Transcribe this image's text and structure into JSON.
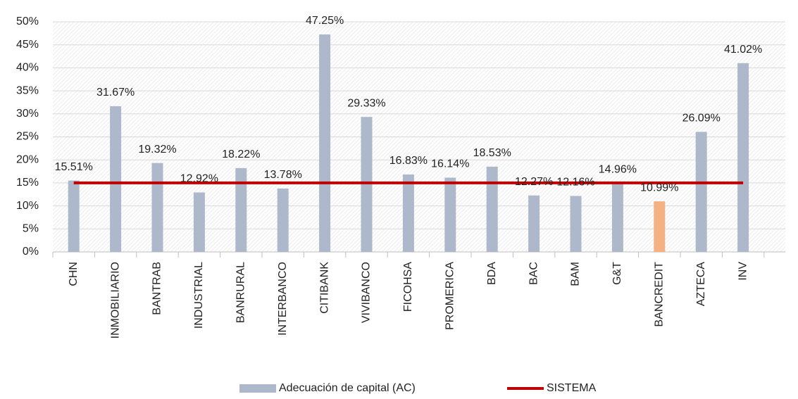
{
  "chart_data": {
    "type": "bar_line",
    "categories": [
      "CHN",
      "INMOBILIARIO",
      "BANTRAB",
      "INDUSTRIAL",
      "BANRURAL",
      "INTERBANCO",
      "CITIBANK",
      "VIVIBANCO",
      "FICOHSA",
      "PROMERICA",
      "BDA",
      "BAC",
      "BAM",
      "G&T",
      "BANCREDIT",
      "AZTECA",
      "INV"
    ],
    "series": [
      {
        "name": "Adecuación de capital (AC)",
        "type": "bar",
        "color": "#adb9ca",
        "point_colors": [
          null,
          null,
          null,
          null,
          null,
          null,
          null,
          null,
          null,
          null,
          null,
          null,
          null,
          null,
          "#f4b183",
          null,
          null
        ],
        "values": [
          15.51,
          31.67,
          19.32,
          12.92,
          18.22,
          13.78,
          47.25,
          29.33,
          16.83,
          16.14,
          18.53,
          12.27,
          12.16,
          14.96,
          10.99,
          26.09,
          41.02
        ],
        "value_labels": [
          "15.51%",
          "31.67%",
          "19.32%",
          "12.92%",
          "18.22%",
          "13.78%",
          "47.25%",
          "29.33%",
          "16.83%",
          "16.14%",
          "18.53%",
          "12.27%",
          "12.16%",
          "14.96%",
          "10.99%",
          "26.09%",
          "41.02%"
        ]
      },
      {
        "name": "SISTEMA",
        "type": "line",
        "color": "#c00000",
        "values": [
          15,
          15,
          15,
          15,
          15,
          15,
          15,
          15,
          15,
          15,
          15,
          15,
          15,
          15,
          15,
          15,
          15
        ]
      }
    ],
    "ylim": [
      0,
      50
    ],
    "yticks": [
      {
        "value": 0,
        "label": "0%"
      },
      {
        "value": 5,
        "label": "5%"
      },
      {
        "value": 10,
        "label": "10%"
      },
      {
        "value": 15,
        "label": "15%"
      },
      {
        "value": 20,
        "label": "20%"
      },
      {
        "value": 25,
        "label": "25%"
      },
      {
        "value": 30,
        "label": "30%"
      },
      {
        "value": 35,
        "label": "35%"
      },
      {
        "value": 40,
        "label": "40%"
      },
      {
        "value": 45,
        "label": "45%"
      },
      {
        "value": 50,
        "label": "50%"
      }
    ],
    "grid": true,
    "legend": "bottom"
  }
}
